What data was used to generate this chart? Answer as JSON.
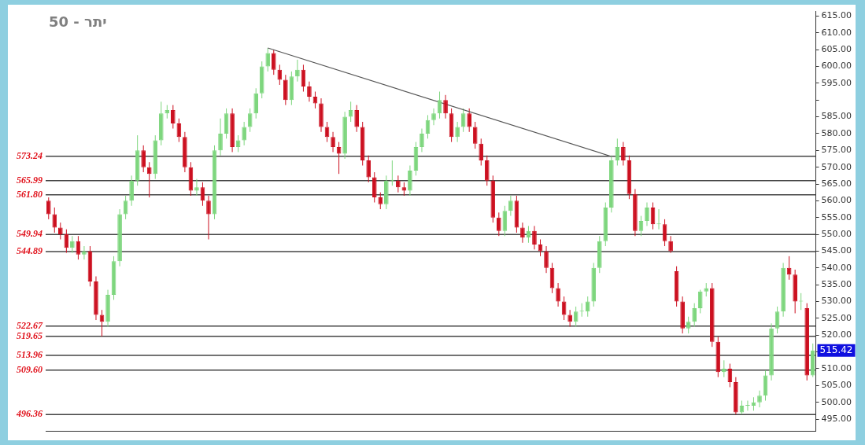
{
  "chart_data": {
    "type": "candlestick",
    "title": "50 - יתר",
    "categories": [
      null,
      null,
      null,
      null,
      null,
      null,
      null,
      null,
      null,
      null,
      null,
      null,
      null,
      null,
      null,
      null,
      null,
      null,
      null,
      null,
      null,
      null,
      null,
      null,
      null,
      null,
      null,
      null,
      null,
      null,
      null,
      null,
      null,
      null,
      null,
      null,
      null,
      null,
      null,
      null,
      null,
      null,
      null,
      null,
      null,
      null,
      null,
      null,
      null,
      null,
      null,
      null,
      null,
      null,
      null,
      null,
      null,
      null,
      null,
      null,
      null,
      null,
      null,
      null,
      null,
      null,
      null,
      null,
      null,
      null,
      null,
      null,
      null,
      null,
      null,
      null,
      null,
      null,
      null,
      null,
      null,
      null,
      null,
      null,
      null,
      null,
      null,
      null,
      null,
      null,
      null,
      null,
      null,
      null,
      null,
      null,
      null,
      null,
      null,
      null,
      null,
      null,
      null,
      null,
      null,
      null,
      null,
      null,
      null,
      null,
      null,
      null,
      null,
      null,
      null,
      null,
      null,
      null,
      null,
      null,
      null,
      null,
      null,
      null,
      null,
      null,
      null,
      null,
      null,
      null
    ],
    "ohlc": [
      [
        560,
        561,
        554.5,
        556
      ],
      [
        556,
        558,
        550.5,
        552
      ],
      [
        552,
        553.5,
        548.5,
        550
      ],
      [
        550,
        551.5,
        544.5,
        546
      ],
      [
        546,
        549.5,
        544.5,
        548
      ],
      [
        548,
        549.5,
        542.5,
        544
      ],
      [
        544,
        546.5,
        542.5,
        545
      ],
      [
        545,
        546.5,
        534.5,
        536
      ],
      [
        536,
        537.5,
        524.5,
        526
      ],
      [
        526,
        527.5,
        519.6,
        524
      ],
      [
        524,
        533.5,
        522.5,
        532
      ],
      [
        532,
        543.5,
        530.5,
        542
      ],
      [
        542,
        557.5,
        540.5,
        556
      ],
      [
        556,
        561.5,
        554.5,
        560
      ],
      [
        560,
        567.5,
        558.5,
        566
      ],
      [
        566,
        579.5,
        564.5,
        575
      ],
      [
        575,
        576.5,
        568.5,
        570
      ],
      [
        570,
        571.5,
        561,
        568
      ],
      [
        568,
        579.5,
        566.5,
        578
      ],
      [
        578,
        589.5,
        576.5,
        586
      ],
      [
        586,
        588.5,
        584.5,
        587
      ],
      [
        587,
        588.5,
        581.5,
        583
      ],
      [
        583,
        584.5,
        577.5,
        579
      ],
      [
        579,
        580.5,
        568.5,
        570
      ],
      [
        570,
        571.5,
        561.5,
        563
      ],
      [
        563,
        566.5,
        561.5,
        564
      ],
      [
        564,
        565.5,
        558.5,
        560
      ],
      [
        560,
        561.5,
        548.5,
        556
      ],
      [
        556,
        576.5,
        554.5,
        575
      ],
      [
        575,
        584.5,
        573.5,
        580
      ],
      [
        580,
        587.5,
        578.5,
        586
      ],
      [
        586,
        587.5,
        574.5,
        576
      ],
      [
        576,
        579.5,
        574.5,
        578
      ],
      [
        578,
        583.5,
        576.5,
        582
      ],
      [
        582,
        587.5,
        580.5,
        586
      ],
      [
        586,
        593.5,
        584.5,
        592
      ],
      [
        592,
        601.5,
        590.5,
        600
      ],
      [
        600,
        605.5,
        598.5,
        604
      ],
      [
        604,
        605,
        597.5,
        599
      ],
      [
        599,
        600.5,
        594.5,
        596
      ],
      [
        596,
        597.5,
        588.5,
        590
      ],
      [
        590,
        598.5,
        588.5,
        597
      ],
      [
        597,
        602,
        595.5,
        599
      ],
      [
        599,
        600.5,
        592.5,
        594
      ],
      [
        594,
        595.5,
        589.5,
        591
      ],
      [
        591,
        592.5,
        587.5,
        589
      ],
      [
        589,
        590.5,
        580.5,
        582
      ],
      [
        582,
        583.5,
        577.5,
        579
      ],
      [
        579,
        580.5,
        574.5,
        576
      ],
      [
        576,
        577.5,
        568,
        574
      ],
      [
        574,
        586.5,
        572.5,
        585
      ],
      [
        585,
        589.5,
        583.5,
        587
      ],
      [
        587,
        588.5,
        580.5,
        582
      ],
      [
        582,
        583.5,
        570.5,
        572
      ],
      [
        572,
        573.5,
        565.5,
        567
      ],
      [
        567,
        568.5,
        559.5,
        561
      ],
      [
        561,
        562.5,
        557.5,
        559
      ],
      [
        559,
        567.5,
        557.5,
        566
      ],
      [
        566,
        572,
        564.5,
        566
      ],
      [
        566,
        567.5,
        562.5,
        564
      ],
      [
        564,
        565.5,
        561.5,
        563
      ],
      [
        563,
        570.5,
        561.5,
        569
      ],
      [
        569,
        577.5,
        567.5,
        576
      ],
      [
        576,
        581.5,
        574.5,
        580
      ],
      [
        580,
        585.5,
        578.5,
        584
      ],
      [
        584,
        587.5,
        582.5,
        586
      ],
      [
        586,
        592.5,
        584.5,
        590
      ],
      [
        590,
        591.5,
        584.5,
        586
      ],
      [
        586,
        587.5,
        577.5,
        579
      ],
      [
        579,
        583.5,
        577.5,
        582
      ],
      [
        582,
        587.5,
        580.5,
        586
      ],
      [
        586,
        587.5,
        580.5,
        582
      ],
      [
        582,
        583.5,
        575.5,
        577
      ],
      [
        577,
        578.5,
        570.5,
        572
      ],
      [
        572,
        573.5,
        564.5,
        566
      ],
      [
        566,
        567.5,
        553.5,
        555
      ],
      [
        555,
        556.5,
        549.5,
        551
      ],
      [
        551,
        558.5,
        549.5,
        557
      ],
      [
        557,
        561.5,
        555.5,
        560
      ],
      [
        560,
        561.5,
        550.5,
        552
      ],
      [
        552,
        553.5,
        547.5,
        549
      ],
      [
        549,
        552.5,
        547.5,
        551
      ],
      [
        551,
        552.5,
        545.5,
        547
      ],
      [
        547,
        548.5,
        543.5,
        545
      ],
      [
        545,
        546.5,
        538.5,
        540
      ],
      [
        540,
        541.5,
        532.5,
        534
      ],
      [
        534,
        535.5,
        528.5,
        530
      ],
      [
        530,
        531.5,
        524.5,
        526
      ],
      [
        526,
        527.5,
        522.5,
        524
      ],
      [
        524,
        528.5,
        522.5,
        527
      ],
      [
        527,
        529.5,
        525.5,
        527
      ],
      [
        527,
        531.5,
        525.5,
        530
      ],
      [
        530,
        541.5,
        528.5,
        540
      ],
      [
        540,
        549.5,
        538.5,
        548
      ],
      [
        548,
        559.5,
        546.5,
        558
      ],
      [
        558,
        573.5,
        556.5,
        572
      ],
      [
        572,
        578.5,
        570.5,
        576
      ],
      [
        576,
        577.5,
        570.5,
        572
      ],
      [
        572,
        573.5,
        560.5,
        562
      ],
      [
        562,
        563.5,
        549.5,
        551
      ],
      [
        551,
        555.5,
        549.5,
        554
      ],
      [
        554,
        559.5,
        552.5,
        558
      ],
      [
        558,
        559.5,
        551.5,
        553
      ],
      [
        553,
        557.5,
        551.5,
        553
      ],
      [
        553,
        554.5,
        546.5,
        548
      ],
      [
        548,
        549.5,
        544.5,
        545
      ],
      [
        539,
        540.5,
        528.5,
        530
      ],
      [
        530,
        531.5,
        520.5,
        522
      ],
      [
        522,
        525.5,
        520.5,
        524
      ],
      [
        524,
        529.5,
        522.5,
        528
      ],
      [
        528,
        533.5,
        526.5,
        533
      ],
      [
        533,
        535.5,
        531.5,
        534
      ],
      [
        534,
        535.5,
        516.5,
        518
      ],
      [
        518,
        519.5,
        507.5,
        509
      ],
      [
        509,
        512.5,
        507.5,
        510
      ],
      [
        510,
        511.5,
        504.5,
        506
      ],
      [
        506,
        507.5,
        496.4,
        497
      ],
      [
        497,
        500.5,
        496.4,
        499
      ],
      [
        499,
        500.5,
        497.5,
        499
      ],
      [
        499,
        501.5,
        497.5,
        500
      ],
      [
        500,
        503.5,
        498.5,
        502
      ],
      [
        502,
        509.5,
        500.5,
        508
      ],
      [
        508,
        523.5,
        506.5,
        522
      ],
      [
        522,
        528.5,
        520.5,
        527
      ],
      [
        527,
        541.5,
        525.5,
        540
      ],
      [
        540,
        543.5,
        536.5,
        538
      ],
      [
        538,
        539.5,
        526.5,
        530
      ],
      [
        530,
        532.5,
        527.5,
        530
      ],
      [
        528,
        529.5,
        506.5,
        508
      ],
      [
        508,
        517.5,
        507.5,
        515.42
      ]
    ],
    "colors": [
      "#cc1020",
      "#cc1020",
      "#cc1020",
      "#cc1020",
      "#7ed67e",
      "#cc1020",
      "#7ed67e",
      "#cc1020",
      "#cc1020",
      "#cc1020",
      "#7ed67e",
      "#7ed67e",
      "#7ed67e",
      "#7ed67e",
      "#7ed67e",
      "#7ed67e",
      "#cc1020",
      "#cc1020",
      "#7ed67e",
      "#7ed67e",
      "#7ed67e",
      "#cc1020",
      "#cc1020",
      "#cc1020",
      "#cc1020",
      "#7ed67e",
      "#cc1020",
      "#cc1020",
      "#7ed67e",
      "#7ed67e",
      "#7ed67e",
      "#cc1020",
      "#7ed67e",
      "#7ed67e",
      "#7ed67e",
      "#7ed67e",
      "#7ed67e",
      "#7ed67e",
      "#cc1020",
      "#cc1020",
      "#cc1020",
      "#7ed67e",
      "#7ed67e",
      "#cc1020",
      "#cc1020",
      "#cc1020",
      "#cc1020",
      "#cc1020",
      "#cc1020",
      "#cc1020",
      "#7ed67e",
      "#7ed67e",
      "#cc1020",
      "#cc1020",
      "#cc1020",
      "#cc1020",
      "#cc1020",
      "#7ed67e",
      "#7ed67e",
      "#cc1020",
      "#cc1020",
      "#7ed67e",
      "#7ed67e",
      "#7ed67e",
      "#7ed67e",
      "#7ed67e",
      "#7ed67e",
      "#cc1020",
      "#cc1020",
      "#7ed67e",
      "#7ed67e",
      "#cc1020",
      "#cc1020",
      "#cc1020",
      "#cc1020",
      "#cc1020",
      "#cc1020",
      "#7ed67e",
      "#7ed67e",
      "#cc1020",
      "#cc1020",
      "#7ed67e",
      "#cc1020",
      "#cc1020",
      "#cc1020",
      "#cc1020",
      "#cc1020",
      "#cc1020",
      "#cc1020",
      "#7ed67e",
      "#7ed67e",
      "#7ed67e",
      "#7ed67e",
      "#7ed67e",
      "#7ed67e",
      "#7ed67e",
      "#7ed67e",
      "#cc1020",
      "#cc1020",
      "#cc1020",
      "#7ed67e",
      "#7ed67e",
      "#cc1020",
      "#7ed67e",
      "#cc1020",
      "#cc1020",
      "#cc1020",
      "#cc1020",
      "#7ed67e",
      "#7ed67e",
      "#7ed67e",
      "#7ed67e",
      "#cc1020",
      "#cc1020",
      "#7ed67e",
      "#cc1020",
      "#cc1020",
      "#7ed67e",
      "#7ed67e",
      "#7ed67e",
      "#7ed67e",
      "#7ed67e",
      "#7ed67e",
      "#7ed67e",
      "#7ed67e",
      "#cc1020",
      "#cc1020",
      "#7ed67e",
      "#cc1020",
      "#7ed67e"
    ],
    "series": [
      {
        "type": "line",
        "color": "#555555",
        "values": [
          null,
          null,
          null,
          null,
          null,
          null,
          null,
          null,
          null,
          null,
          null,
          null,
          null,
          null,
          null,
          null,
          null,
          null,
          null,
          null,
          null,
          null,
          null,
          null,
          null,
          null,
          null,
          null,
          null,
          null,
          null,
          null,
          null,
          null,
          null,
          null,
          null,
          605.5,
          null,
          null,
          null,
          null,
          null,
          null,
          null,
          null,
          null,
          null,
          null,
          null,
          null,
          null,
          null,
          null,
          null,
          null,
          null,
          null,
          null,
          null,
          null,
          null,
          null,
          null,
          null,
          null,
          null,
          null,
          null,
          null,
          null,
          null,
          null,
          null,
          null,
          null,
          null,
          null,
          null,
          null,
          null,
          null,
          null,
          null,
          null,
          null,
          null,
          null,
          null,
          null,
          null,
          null,
          null,
          null,
          null,
          573.2,
          null,
          null,
          null,
          null,
          null,
          null,
          null,
          null,
          null,
          null,
          null,
          null,
          null,
          null,
          null,
          null,
          null,
          null,
          null,
          null,
          null,
          null,
          null,
          null,
          null,
          null,
          null,
          null,
          null,
          null,
          null,
          null,
          null,
          null
        ]
      }
    ],
    "ylim": [
      491.5,
      616.5
    ],
    "yticks": [
      {
        "value": 495,
        "label": "495.00"
      },
      {
        "value": 500,
        "label": "500.00"
      },
      {
        "value": 505,
        "label": "505.00"
      },
      {
        "value": 510,
        "label": "510.00"
      },
      {
        "value": 515,
        "label": null
      },
      {
        "value": 520,
        "label": "520.00"
      },
      {
        "value": 525,
        "label": "525.00"
      },
      {
        "value": 530,
        "label": "530.00"
      },
      {
        "value": 535,
        "label": "535.00"
      },
      {
        "value": 540,
        "label": "540.00"
      },
      {
        "value": 545,
        "label": "545.00"
      },
      {
        "value": 550,
        "label": "550.00"
      },
      {
        "value": 555,
        "label": "555.00"
      },
      {
        "value": 560,
        "label": "560.00"
      },
      {
        "value": 565,
        "label": "565.00"
      },
      {
        "value": 570,
        "label": "570.00"
      },
      {
        "value": 575,
        "label": "575.00"
      },
      {
        "value": 580,
        "label": "580.00"
      },
      {
        "value": 585,
        "label": "585.00"
      },
      {
        "value": 590,
        "label": null
      },
      {
        "value": 595,
        "label": "595.00"
      },
      {
        "value": 600,
        "label": "600.00"
      },
      {
        "value": 605,
        "label": "605.00"
      },
      {
        "value": 610,
        "label": "610.00"
      },
      {
        "value": 615,
        "label": "615.00"
      }
    ],
    "tick_labels": "y",
    "grid": false,
    "ref_lines": [
      {
        "axis": "y",
        "value": 573.24,
        "label": "573.24",
        "color": "#444444"
      },
      {
        "axis": "y",
        "value": 565.99,
        "label": "565.99",
        "color": "#444444"
      },
      {
        "axis": "y",
        "value": 561.8,
        "label": "561.80",
        "color": "#444444"
      },
      {
        "axis": "y",
        "value": 549.94,
        "label": "549.94",
        "color": "#444444"
      },
      {
        "axis": "y",
        "value": 544.89,
        "label": "544.89",
        "color": "#444444"
      },
      {
        "axis": "y",
        "value": 522.67,
        "label": "522.67",
        "color": "#444444"
      },
      {
        "axis": "y",
        "value": 519.65,
        "label": "519.65",
        "color": "#444444"
      },
      {
        "axis": "y",
        "value": 513.96,
        "label": "513.96",
        "color": "#444444"
      },
      {
        "axis": "y",
        "value": 509.6,
        "label": "509.60",
        "color": "#444444"
      },
      {
        "axis": "y",
        "value": 496.36,
        "label": "496.36",
        "color": "#444444"
      }
    ],
    "annotations": [
      "515.42"
    ]
  }
}
